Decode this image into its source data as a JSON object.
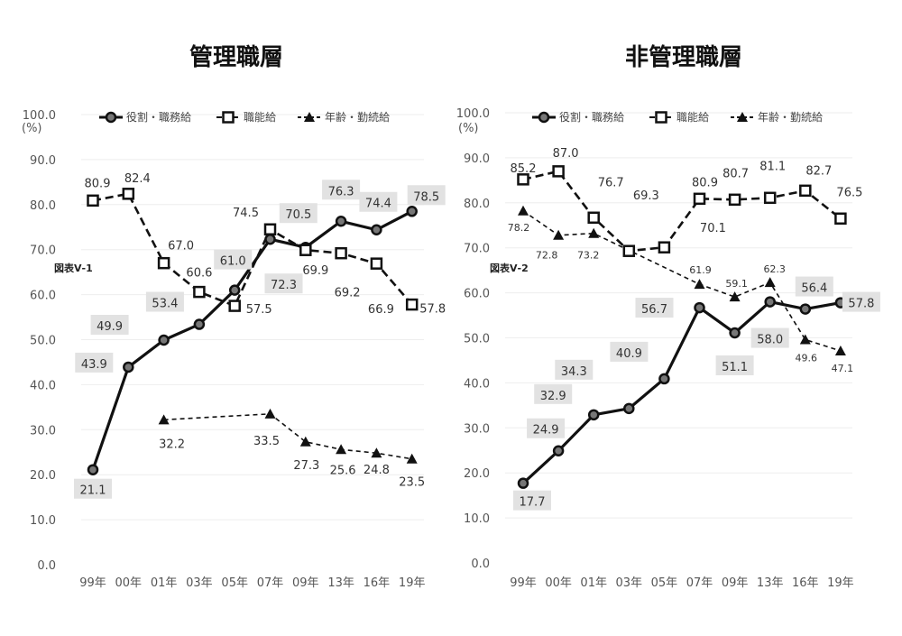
{
  "chart_data": [
    {
      "type": "line",
      "title": "管理職層",
      "figure_label": "図表Ⅴ-1",
      "ylabel": "(%)",
      "ylim": [
        0,
        100
      ],
      "yticks": [
        "0.0",
        "10.0",
        "20.0",
        "30.0",
        "40.0",
        "50.0",
        "60.0",
        "70.0",
        "80.0",
        "90.0",
        "100.0"
      ],
      "categories": [
        "99年",
        "00年",
        "01年",
        "03年",
        "05年",
        "07年",
        "09年",
        "13年",
        "16年",
        "19年"
      ],
      "legend_position": "top",
      "series": [
        {
          "name": "役割・職務給",
          "style": "solid-circle",
          "values": [
            21.1,
            43.9,
            49.9,
            53.4,
            61.0,
            72.3,
            70.5,
            76.3,
            74.4,
            78.5
          ],
          "labels": [
            "21.1",
            "43.9",
            "49.9",
            "53.4",
            "61.0",
            "72.3",
            "70.5",
            "76.3",
            "74.4",
            "78.5"
          ]
        },
        {
          "name": "職能給",
          "style": "dash-square",
          "values": [
            80.9,
            82.4,
            67.0,
            60.6,
            57.5,
            74.5,
            69.9,
            69.2,
            66.9,
            57.8
          ],
          "labels": [
            "80.9",
            "82.4",
            "67.0",
            "60.6",
            "57.5",
            "74.5",
            "69.9",
            "69.2",
            "66.9",
            "57.8"
          ]
        },
        {
          "name": "年齢・勤続給",
          "style": "dot-triangle",
          "values": [
            null,
            null,
            32.2,
            null,
            null,
            33.5,
            27.3,
            25.6,
            24.8,
            23.5
          ],
          "labels": [
            null,
            null,
            "32.2",
            null,
            null,
            "33.5",
            "27.3",
            "25.6",
            "24.8",
            "23.5"
          ]
        }
      ]
    },
    {
      "type": "line",
      "title": "非管理職層",
      "figure_label": "図表Ⅴ-2",
      "ylabel": "(%)",
      "ylim": [
        0,
        100
      ],
      "yticks": [
        "0.0",
        "10.0",
        "20.0",
        "30.0",
        "40.0",
        "50.0",
        "60.0",
        "70.0",
        "80.0",
        "90.0",
        "100.0"
      ],
      "categories": [
        "99年",
        "00年",
        "01年",
        "03年",
        "05年",
        "07年",
        "09年",
        "13年",
        "16年",
        "19年"
      ],
      "legend_position": "top",
      "series": [
        {
          "name": "役割・職務給",
          "style": "solid-circle",
          "values": [
            17.7,
            24.9,
            32.9,
            34.3,
            40.9,
            56.7,
            51.1,
            58.0,
            56.4,
            57.8
          ],
          "labels": [
            "17.7",
            "24.9",
            "32.9",
            "34.3",
            "40.9",
            "56.7",
            "51.1",
            "58.0",
            "56.4",
            "57.8"
          ]
        },
        {
          "name": "職能給",
          "style": "dash-square",
          "values": [
            85.2,
            87.0,
            76.7,
            69.3,
            70.1,
            80.9,
            80.7,
            81.1,
            82.7,
            76.5
          ],
          "labels": [
            "85.2",
            "87.0",
            "76.7",
            "69.3",
            "70.1",
            "80.9",
            "80.7",
            "81.1",
            "82.7",
            "76.5"
          ]
        },
        {
          "name": "年齢・勤続給",
          "style": "dot-triangle",
          "values": [
            78.2,
            72.8,
            73.2,
            null,
            null,
            61.9,
            59.1,
            62.3,
            49.6,
            47.1
          ],
          "labels": [
            "78.2",
            "72.8",
            "73.2",
            null,
            null,
            "61.9",
            "59.1",
            "62.3",
            "49.6",
            "47.1"
          ]
        }
      ]
    }
  ]
}
